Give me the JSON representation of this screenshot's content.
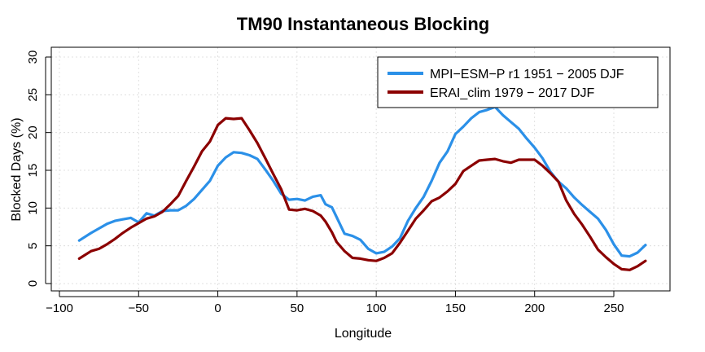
{
  "chart_data": {
    "type": "line",
    "title": "TM90 Instantaneous Blocking",
    "xlabel": "Longitude",
    "ylabel": "Blocked Days (%)",
    "xlim": [
      -90,
      280
    ],
    "ylim": [
      0,
      30
    ],
    "xticks": [
      -100,
      -50,
      0,
      50,
      100,
      150,
      200,
      250
    ],
    "yticks": [
      0,
      5,
      10,
      15,
      20,
      25,
      30
    ],
    "xtick_labels": [
      "−100",
      "−50",
      "0",
      "50",
      "100",
      "150",
      "200",
      "250"
    ],
    "ytick_labels": [
      "0",
      "5",
      "10",
      "15",
      "20",
      "25",
      "30"
    ],
    "grid": true,
    "legend_position": "top-right",
    "series": [
      {
        "name": "MPI−ESM−P r1 1951 − 2005 DJF",
        "color": "#2b90e8",
        "x": [
          -87.5,
          -80,
          -75,
          -70,
          -65,
          -60,
          -55,
          -50,
          -45,
          -40,
          -35,
          -30,
          -25,
          -20,
          -15,
          -10,
          -5,
          0,
          5,
          10,
          15,
          20,
          25,
          30,
          35,
          40,
          45,
          50,
          55,
          60,
          65,
          68,
          72,
          75,
          80,
          85,
          90,
          95,
          100,
          105,
          110,
          115,
          120,
          125,
          130,
          135,
          140,
          145,
          150,
          155,
          160,
          165,
          170,
          175,
          180,
          185,
          190,
          195,
          200,
          205,
          210,
          215,
          220,
          225,
          230,
          235,
          240,
          245,
          250,
          255,
          260,
          265,
          270
        ],
        "y": [
          5.7,
          6.7,
          7.3,
          7.9,
          8.3,
          8.5,
          8.7,
          8.1,
          9.3,
          9.0,
          9.6,
          9.7,
          9.7,
          10.3,
          11.2,
          12.4,
          13.6,
          15.6,
          16.7,
          17.4,
          17.3,
          17.0,
          16.5,
          15.1,
          13.6,
          11.9,
          11.1,
          11.2,
          11.0,
          11.5,
          11.7,
          10.5,
          10.1,
          8.8,
          6.6,
          6.3,
          5.8,
          4.6,
          4.0,
          4.2,
          4.9,
          6.0,
          8.3,
          10.0,
          11.5,
          13.6,
          16.0,
          17.5,
          19.8,
          20.8,
          21.9,
          22.7,
          23.0,
          23.4,
          22.3,
          21.4,
          20.5,
          19.2,
          18.0,
          16.6,
          14.8,
          13.5,
          12.6,
          11.4,
          10.4,
          9.5,
          8.6,
          7.1,
          5.2,
          3.7,
          3.6,
          4.1,
          5.1
        ]
      },
      {
        "name": "ERAI_clim 1979 − 2017 DJF",
        "color": "#8b0000",
        "x": [
          -87.5,
          -80,
          -75,
          -70,
          -65,
          -60,
          -55,
          -50,
          -45,
          -40,
          -35,
          -30,
          -25,
          -20,
          -15,
          -10,
          -5,
          0,
          5,
          10,
          15,
          20,
          25,
          30,
          35,
          40,
          45,
          50,
          55,
          60,
          65,
          68,
          72,
          75,
          80,
          85,
          90,
          95,
          100,
          105,
          110,
          115,
          120,
          125,
          130,
          135,
          140,
          145,
          150,
          155,
          160,
          165,
          170,
          175,
          180,
          185,
          190,
          195,
          200,
          205,
          210,
          215,
          220,
          225,
          230,
          235,
          240,
          245,
          250,
          255,
          260,
          265,
          270
        ],
        "y": [
          3.3,
          4.3,
          4.6,
          5.2,
          5.9,
          6.7,
          7.4,
          8.0,
          8.6,
          8.9,
          9.5,
          10.5,
          11.6,
          13.6,
          15.5,
          17.5,
          18.8,
          21.0,
          21.9,
          21.8,
          21.9,
          20.3,
          18.6,
          16.6,
          14.5,
          12.5,
          9.8,
          9.7,
          9.9,
          9.6,
          9.0,
          8.2,
          6.8,
          5.5,
          4.3,
          3.4,
          3.3,
          3.1,
          3.0,
          3.4,
          4.0,
          5.4,
          7.0,
          8.6,
          9.7,
          10.9,
          11.4,
          12.2,
          13.2,
          14.9,
          15.6,
          16.3,
          16.4,
          16.5,
          16.2,
          16.0,
          16.4,
          16.4,
          16.4,
          15.6,
          14.6,
          13.5,
          11.0,
          9.2,
          7.8,
          6.2,
          4.5,
          3.5,
          2.6,
          1.9,
          1.8,
          2.3,
          3.0
        ]
      }
    ]
  }
}
